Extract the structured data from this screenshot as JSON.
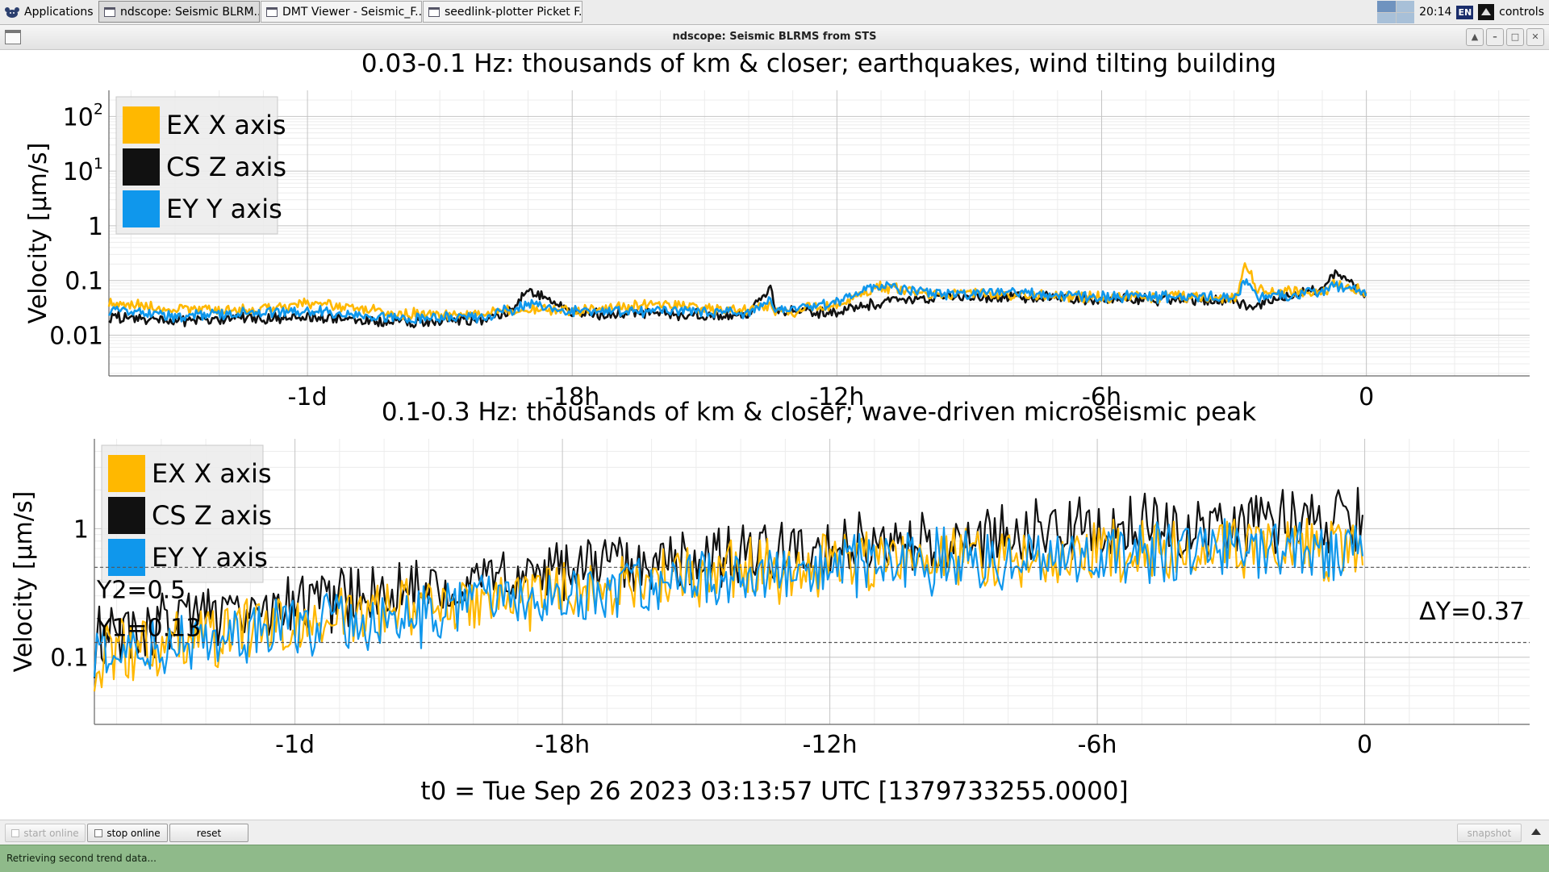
{
  "taskbar": {
    "apps_label": "Applications",
    "tasks": [
      {
        "label": "ndscope: Seismic BLRM..."
      },
      {
        "label": "DMT Viewer - Seismic_F..."
      },
      {
        "label": "seedlink-plotter Picket F..."
      }
    ],
    "clock": "20:14",
    "keyboard_layout": "EN",
    "user": "controls"
  },
  "window": {
    "title": "ndscope: Seismic BLRMS from STS"
  },
  "colors": {
    "ex": "#ffb800",
    "cs": "#111111",
    "ey": "#0f97ec",
    "grid": "#cfcfcf",
    "status_bg": "#8fba8a"
  },
  "chart_data": [
    {
      "type": "line",
      "title": "0.03-0.1 Hz: thousands of km & closer; earthquakes, wind tilting building",
      "ylabel": "Velocity [µm/s]",
      "yscale": "log",
      "ylim": [
        0.0018,
        300
      ],
      "y_ticks": [
        {
          "label": "0.01",
          "value": 0.01
        },
        {
          "label": "0.1",
          "value": 0.1
        },
        {
          "label": "1",
          "value": 1
        },
        {
          "label": "10",
          "sup": "1",
          "value": 10
        },
        {
          "label": "10",
          "sup": "2",
          "value": 100
        }
      ],
      "xlim_hours": [
        -28.5,
        3.7
      ],
      "x_ticks": [
        {
          "label": "-1d",
          "value": -24
        },
        {
          "label": "-18h",
          "value": -18
        },
        {
          "label": "-12h",
          "value": -12
        },
        {
          "label": "-6h",
          "value": -6
        },
        {
          "label": "0",
          "value": 0
        }
      ],
      "grid": true,
      "legend_position": "top-left",
      "series": [
        {
          "name": "EX X axis",
          "x": [
            -28.5,
            -27,
            -25.5,
            -24,
            -22,
            -20,
            -19.3,
            -19,
            -18,
            -16,
            -14,
            -13.5,
            -13.4,
            -13,
            -12,
            -11,
            -10,
            -9,
            -8,
            -6,
            -4,
            -2.9,
            -2.75,
            -2.5,
            -1,
            -0.7,
            0
          ],
          "y": [
            0.04,
            0.03,
            0.028,
            0.038,
            0.025,
            0.024,
            0.028,
            0.03,
            0.028,
            0.036,
            0.028,
            0.035,
            0.03,
            0.027,
            0.035,
            0.075,
            0.06,
            0.055,
            0.055,
            0.05,
            0.05,
            0.05,
            0.18,
            0.07,
            0.06,
            0.09,
            0.06
          ]
        },
        {
          "name": "CS Z axis",
          "x": [
            -28.5,
            -27,
            -25.5,
            -24,
            -22,
            -20,
            -19.3,
            -19,
            -18,
            -16,
            -14,
            -13.5,
            -13.4,
            -13,
            -12,
            -11,
            -10,
            -9,
            -8,
            -6,
            -4,
            -2.9,
            -2.6,
            -2.3,
            -1,
            -0.7,
            0
          ],
          "y": [
            0.022,
            0.018,
            0.02,
            0.022,
            0.017,
            0.02,
            0.028,
            0.065,
            0.025,
            0.025,
            0.022,
            0.07,
            0.025,
            0.028,
            0.026,
            0.04,
            0.05,
            0.05,
            0.05,
            0.045,
            0.045,
            0.04,
            0.03,
            0.04,
            0.07,
            0.13,
            0.05
          ]
        },
        {
          "name": "EY Y axis",
          "x": [
            -28.5,
            -27,
            -25.5,
            -24,
            -22,
            -20,
            -19.3,
            -19,
            -18,
            -16,
            -14,
            -13.5,
            -13.4,
            -13,
            -12,
            -11,
            -10,
            -9,
            -8,
            -6,
            -4,
            -2.9,
            -2.75,
            -2.5,
            -1,
            -0.7,
            0
          ],
          "y": [
            0.028,
            0.022,
            0.025,
            0.028,
            0.02,
            0.022,
            0.03,
            0.04,
            0.027,
            0.028,
            0.025,
            0.04,
            0.028,
            0.03,
            0.04,
            0.08,
            0.06,
            0.055,
            0.06,
            0.05,
            0.05,
            0.05,
            0.1,
            0.05,
            0.06,
            0.08,
            0.06
          ]
        }
      ]
    },
    {
      "type": "line",
      "title": "0.1-0.3 Hz: thousands of km & closer; wave-driven microseismic peak",
      "ylabel": "Velocity [µm/s]",
      "yscale": "log",
      "ylim": [
        0.03,
        5
      ],
      "y_ticks": [
        {
          "label": "0.1",
          "value": 0.1
        },
        {
          "label": "1",
          "value": 1
        }
      ],
      "xlim_hours": [
        -28.5,
        3.7
      ],
      "x_ticks": [
        {
          "label": "-1d",
          "value": -24
        },
        {
          "label": "-18h",
          "value": -18
        },
        {
          "label": "-12h",
          "value": -12
        },
        {
          "label": "-6h",
          "value": -6
        },
        {
          "label": "0",
          "value": 0
        }
      ],
      "grid": true,
      "legend_position": "top-left",
      "series": [
        {
          "name": "EX X axis",
          "x": [
            -28.5,
            -26,
            -24,
            -22,
            -20,
            -18,
            -16,
            -14,
            -12,
            -10,
            -8,
            -6,
            -4,
            -2,
            0
          ],
          "y": [
            0.1,
            0.15,
            0.18,
            0.22,
            0.27,
            0.32,
            0.38,
            0.45,
            0.52,
            0.6,
            0.65,
            0.68,
            0.7,
            0.72,
            0.72
          ]
        },
        {
          "name": "CS Z axis",
          "x": [
            -28.5,
            -26,
            -24,
            -22,
            -20,
            -18,
            -16,
            -14,
            -12,
            -10,
            -8,
            -6,
            -4,
            -2,
            0
          ],
          "y": [
            0.13,
            0.2,
            0.27,
            0.32,
            0.4,
            0.48,
            0.55,
            0.62,
            0.7,
            0.8,
            0.9,
            1.0,
            1.05,
            1.1,
            1.1
          ]
        },
        {
          "name": "EY Y axis",
          "x": [
            -28.5,
            -26,
            -24,
            -22,
            -20,
            -18,
            -16,
            -14,
            -12,
            -10,
            -8,
            -6,
            -4,
            -2,
            0
          ],
          "y": [
            0.1,
            0.14,
            0.17,
            0.2,
            0.25,
            0.3,
            0.35,
            0.42,
            0.5,
            0.55,
            0.6,
            0.62,
            0.64,
            0.65,
            0.66
          ]
        }
      ],
      "cursors": {
        "y1": 0.13,
        "y2": 0.5,
        "y1_label": "Y1=0.13",
        "y2_label": "Y2=0.5",
        "delta_label": "ΔY=0.37"
      }
    }
  ],
  "t0_label": "t0 = Tue Sep 26 2023 03:13:57 UTC [1379733255.0000]",
  "controls": {
    "start_online": "start online",
    "stop_online": "stop online",
    "reset": "reset",
    "snapshot": "snapshot"
  },
  "status": {
    "message": "Retrieving second trend data..."
  }
}
